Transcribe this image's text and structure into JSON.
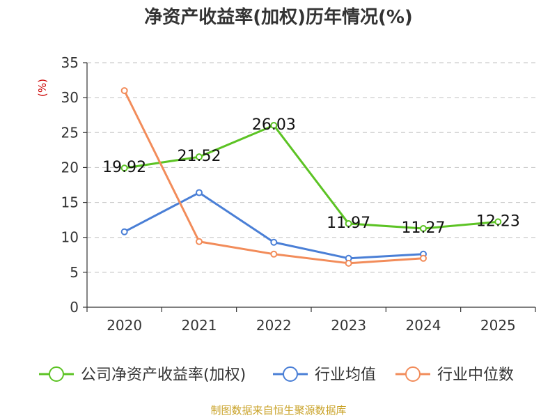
{
  "colors": {
    "company": "#5cc324",
    "industry_avg": "#4a7fd6",
    "industry_median": "#f28c5a",
    "grid": "#cccccc",
    "axis": "#333333",
    "source": "#c9a227"
  },
  "chart_data": {
    "type": "line",
    "title": "净资产收益率(加权)历年情况(%)",
    "ylabel": "(%)",
    "xlabel": "",
    "categories": [
      "2020",
      "2021",
      "2022",
      "2023",
      "2024",
      "2025"
    ],
    "ylim": [
      0,
      35
    ],
    "yticks": [
      0,
      5,
      10,
      15,
      20,
      25,
      30,
      35
    ],
    "grid": true,
    "legend_position": "bottom",
    "series": [
      {
        "name": "公司净资产收益率(加权)",
        "color_key": "company",
        "values": [
          19.92,
          21.52,
          26.03,
          11.97,
          11.27,
          12.23
        ],
        "labels": [
          "19.92",
          "21.52",
          "26.03",
          "11.97",
          "11.27",
          "12.23"
        ]
      },
      {
        "name": "行业均值",
        "color_key": "industry_avg",
        "values": [
          10.8,
          16.4,
          9.3,
          7.0,
          7.6,
          null
        ]
      },
      {
        "name": "行业中位数",
        "color_key": "industry_median",
        "values": [
          31.0,
          9.4,
          7.6,
          6.3,
          7.0,
          null
        ]
      }
    ],
    "source": "制图数据来自恒生聚源数据库"
  }
}
